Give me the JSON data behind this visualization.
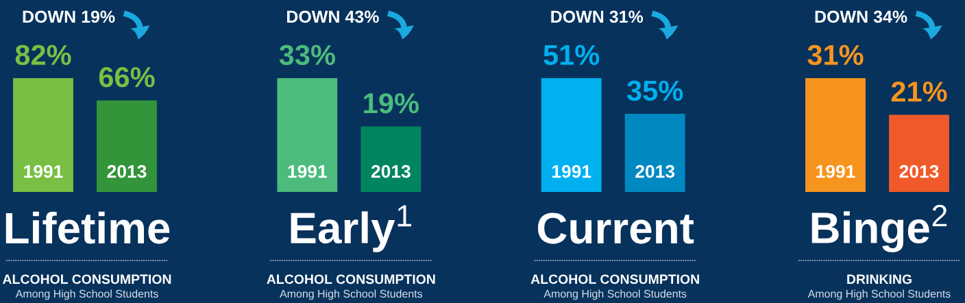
{
  "chart_data": [
    {
      "type": "bar",
      "title": "Lifetime",
      "subtitle": "ALCOHOL CONSUMPTION",
      "categories": [
        "1991",
        "2013"
      ],
      "values": [
        82,
        66
      ],
      "colors": [
        "#78bf43",
        "#33953a"
      ],
      "value_labels": [
        "82%",
        "66%"
      ],
      "annotations": [
        "DOWN 19%",
        "Among High School Students"
      ]
    },
    {
      "type": "bar",
      "title": "Early$^{1}$",
      "subtitle": "ALCOHOL CONSUMPTION",
      "categories": [
        "1991",
        "2013"
      ],
      "values": [
        33,
        19
      ],
      "colors": [
        "#4cbb7d",
        "#008560"
      ],
      "value_labels": [
        "33%",
        "19%"
      ],
      "annotations": [
        "DOWN 43%",
        "Among High School Students"
      ]
    },
    {
      "type": "bar",
      "title": "Current",
      "subtitle": "ALCOHOL CONSUMPTION",
      "categories": [
        "1991",
        "2013"
      ],
      "values": [
        51,
        35
      ],
      "colors": [
        "#00b0ef",
        "#0088c0"
      ],
      "value_labels": [
        "51%",
        "35%"
      ],
      "annotations": [
        "DOWN 31%",
        "Among High School Students"
      ]
    },
    {
      "type": "bar",
      "title": "Binge$^{2}$",
      "subtitle": "DRINKING",
      "categories": [
        "1991",
        "2013"
      ],
      "values": [
        31,
        21
      ],
      "colors": [
        "#f7941e",
        "#f05a2a"
      ],
      "value_labels": [
        "31%",
        "21%"
      ],
      "annotations": [
        "DOWN 34%",
        "Among High School Students"
      ]
    }
  ]
}
